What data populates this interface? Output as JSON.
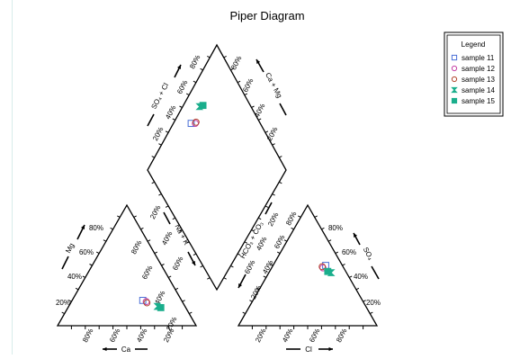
{
  "title": "Piper Diagram",
  "colors": {
    "accent": "#1aae8c"
  },
  "legend": {
    "title": "Legend",
    "items": [
      {
        "label": "sample 11",
        "marker": "square-open",
        "color": "#4a6fd6"
      },
      {
        "label": "sample 12",
        "marker": "circle-open",
        "color": "#c53fa4"
      },
      {
        "label": "sample 13",
        "marker": "circle-open",
        "color": "#b4472f"
      },
      {
        "label": "sample 14",
        "marker": "hourglass",
        "color": "#1aae8c"
      },
      {
        "label": "sample 15",
        "marker": "square-filled",
        "color": "#1aae8c"
      }
    ]
  },
  "axes": {
    "cation_left": "Mg",
    "cation_bottom": "Ca",
    "anion_right": "SO₄",
    "anion_bottom": "Cl",
    "diamond_upper_left": "SO₄ + Cl",
    "diamond_upper_right": "Ca + Mg",
    "diamond_lower_left": "Na + K",
    "diamond_lower_right": "HCO₃ + CO₃"
  },
  "ticks": [
    "20%",
    "40%",
    "60%",
    "80%"
  ],
  "chart_data": {
    "type": "scatter",
    "title": "Piper Diagram",
    "series": [
      {
        "name": "sample 11",
        "cation_percent": {
          "Ca": 28,
          "Mg": 21,
          "Na+K": 51
        },
        "anion_percent": {
          "Cl": 38,
          "SO4": 50,
          "HCO3+CO3": 12
        }
      },
      {
        "name": "sample 12",
        "cation_percent": {
          "Ca": 26,
          "Mg": 20,
          "Na+K": 54
        },
        "anion_percent": {
          "Cl": 37,
          "SO4": 48,
          "HCO3+CO3": 15
        }
      },
      {
        "name": "sample 13",
        "cation_percent": {
          "Ca": 26,
          "Mg": 19,
          "Na+K": 55
        },
        "anion_percent": {
          "Cl": 36,
          "SO4": 49,
          "HCO3+CO3": 15
        }
      },
      {
        "name": "sample 14",
        "cation_percent": {
          "Ca": 20,
          "Mg": 16,
          "Na+K": 64
        },
        "anion_percent": {
          "Cl": 45,
          "SO4": 44,
          "HCO3+CO3": 11
        }
      },
      {
        "name": "sample 15",
        "cation_percent": {
          "Ca": 18,
          "Mg": 15,
          "Na+K": 67
        },
        "anion_percent": {
          "Cl": 42,
          "SO4": 45,
          "HCO3+CO3": 13
        }
      }
    ]
  }
}
